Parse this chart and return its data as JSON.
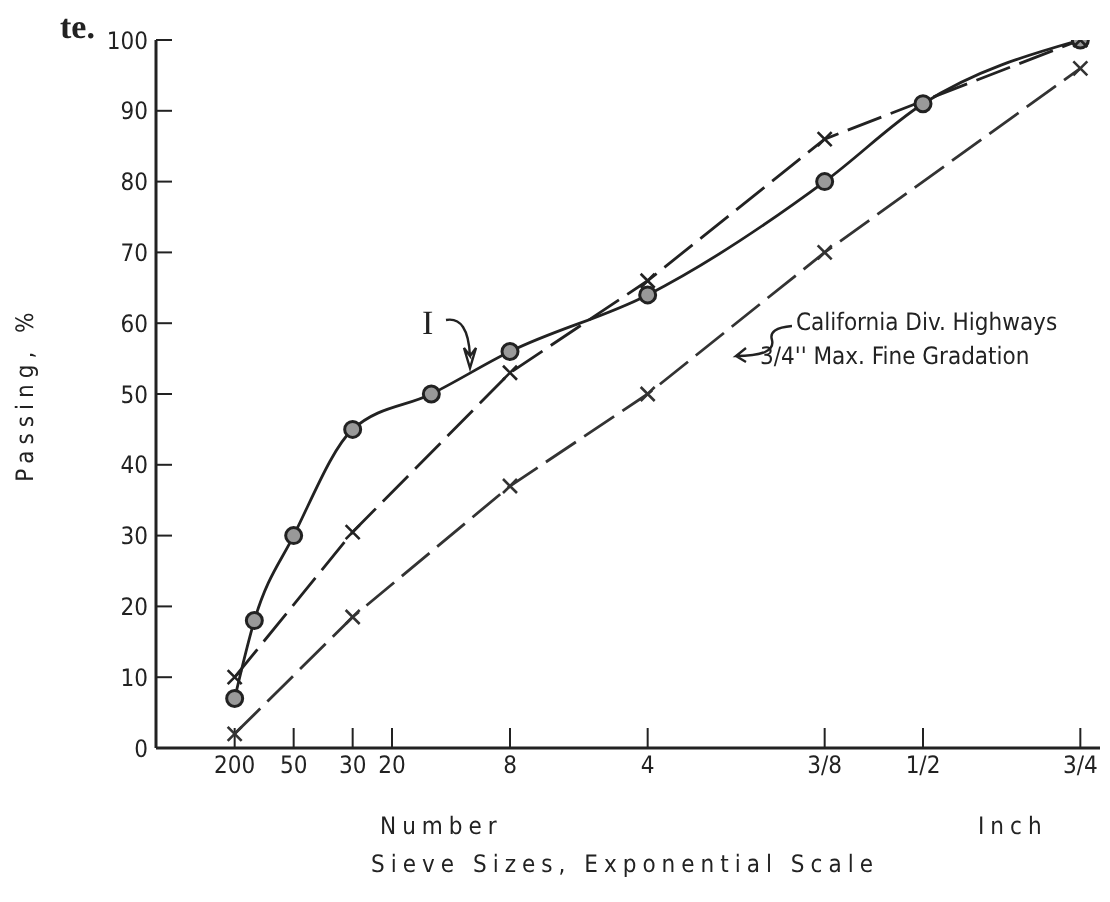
{
  "chart_data": {
    "type": "line",
    "xlabel": "Sieve Sizes, Exponential Scale",
    "ylabel": "Passing, %",
    "categories": [
      null,
      null,
      null,
      null,
      "200",
      null,
      null,
      "50",
      null,
      null,
      "30",
      null,
      "20",
      null,
      null,
      null,
      null,
      null,
      "8",
      null,
      null,
      null,
      null,
      null,
      null,
      "4",
      null,
      null,
      null,
      null,
      null,
      null,
      null,
      null,
      "3/8",
      null,
      null,
      null,
      null,
      "1/2",
      null,
      null,
      null,
      null,
      null,
      null,
      null,
      "3/4",
      null
    ],
    "ylim": [
      0,
      100
    ],
    "yticks": [
      0,
      10,
      20,
      30,
      40,
      50,
      60,
      70,
      80,
      90,
      100
    ],
    "series": [
      {
        "color": "#222222",
        "marker": "circle",
        "line_style": "solid",
        "values": [
          null,
          null,
          null,
          null,
          7,
          18,
          null,
          30,
          null,
          null,
          45,
          null,
          null,
          null,
          50,
          null,
          null,
          null,
          56,
          null,
          null,
          null,
          null,
          null,
          null,
          64,
          null,
          null,
          null,
          null,
          null,
          null,
          null,
          null,
          80,
          null,
          null,
          null,
          null,
          91,
          null,
          null,
          null,
          null,
          null,
          null,
          null,
          100,
          null
        ]
      },
      {
        "color": "#222222",
        "marker": "cross",
        "line_style": "dashed",
        "values": [
          null,
          null,
          null,
          null,
          10,
          null,
          null,
          null,
          null,
          null,
          30.5,
          null,
          null,
          null,
          null,
          null,
          null,
          null,
          53,
          null,
          null,
          null,
          null,
          null,
          null,
          66,
          null,
          null,
          null,
          null,
          null,
          null,
          null,
          null,
          86,
          null,
          null,
          null,
          null,
          null,
          null,
          null,
          null,
          null,
          null,
          null,
          null,
          100,
          null
        ]
      },
      {
        "type": "line",
        "color": "#333333",
        "marker": "cross",
        "line_style": "dashed",
        "values": [
          null,
          null,
          null,
          null,
          2,
          null,
          null,
          null,
          null,
          null,
          18.5,
          null,
          null,
          null,
          null,
          null,
          null,
          null,
          37,
          null,
          null,
          null,
          null,
          null,
          null,
          50,
          null,
          null,
          null,
          null,
          null,
          null,
          null,
          null,
          70,
          null,
          null,
          null,
          null,
          null,
          null,
          null,
          null,
          null,
          null,
          null,
          null,
          96,
          null
        ]
      }
    ],
    "annotations": [
      "te.",
      "Number",
      "Inch",
      "I",
      "California Div. Highways",
      "3/4'' Max. Fine Gradation"
    ]
  }
}
